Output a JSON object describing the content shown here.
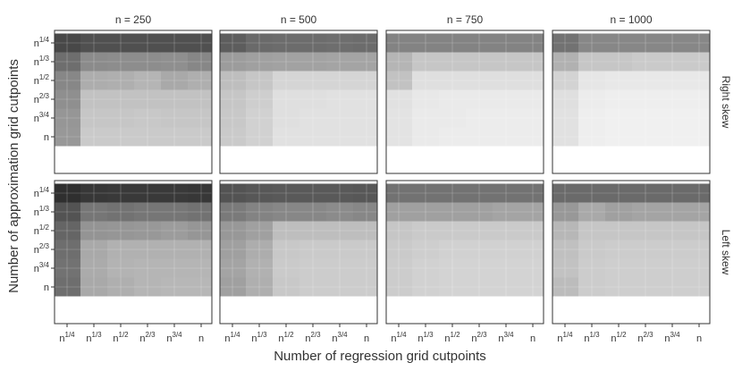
{
  "chart_data": {
    "type": "heatmap",
    "xlabel": "Number of regression grid cutpoints",
    "ylabel": "Number of approximation grid cutpoints",
    "x_ticks": [
      {
        "base": "n",
        "exp": "1/4"
      },
      {
        "base": "n",
        "exp": "1/3"
      },
      {
        "base": "n",
        "exp": "1/2"
      },
      {
        "base": "n",
        "exp": "2/3"
      },
      {
        "base": "n",
        "exp": "3/4"
      },
      {
        "base": "n",
        "exp": ""
      }
    ],
    "y_ticks": [
      {
        "base": "n",
        "exp": "1/4"
      },
      {
        "base": "n",
        "exp": "1/3"
      },
      {
        "base": "n",
        "exp": "1/2"
      },
      {
        "base": "n",
        "exp": "2/3"
      },
      {
        "base": "n",
        "exp": "3/4"
      },
      {
        "base": "n",
        "exp": ""
      }
    ],
    "col_facets": [
      "n = 250",
      "n = 500",
      "n = 750",
      "n = 1000"
    ],
    "row_facets": [
      "Right skew",
      "Left skew"
    ],
    "grid": true,
    "legend": "none",
    "colors": {
      "low": "#f0f0f0",
      "high": "#1e1e1e",
      "panel_border": "#333333",
      "strip_bg": "#ffffff",
      "grid": "#ffffff"
    },
    "value_range": [
      0,
      1
    ],
    "panels": [
      [
        [
          [
            0.8,
            0.76,
            0.76,
            0.76,
            0.76,
            0.76
          ],
          [
            0.62,
            0.48,
            0.47,
            0.47,
            0.46,
            0.5
          ],
          [
            0.5,
            0.32,
            0.31,
            0.28,
            0.34,
            0.31
          ],
          [
            0.46,
            0.22,
            0.22,
            0.22,
            0.22,
            0.22
          ],
          [
            0.43,
            0.2,
            0.2,
            0.19,
            0.2,
            0.2
          ],
          [
            0.42,
            0.18,
            0.18,
            0.18,
            0.18,
            0.18
          ]
        ],
        [
          [
            0.7,
            0.64,
            0.63,
            0.63,
            0.62,
            0.63
          ],
          [
            0.4,
            0.38,
            0.37,
            0.37,
            0.36,
            0.36
          ],
          [
            0.24,
            0.2,
            0.13,
            0.13,
            0.13,
            0.13
          ],
          [
            0.2,
            0.16,
            0.08,
            0.08,
            0.07,
            0.07
          ],
          [
            0.19,
            0.15,
            0.08,
            0.07,
            0.07,
            0.07
          ],
          [
            0.18,
            0.15,
            0.07,
            0.07,
            0.07,
            0.07
          ]
        ],
        [
          [
            0.52,
            0.52,
            0.52,
            0.52,
            0.52,
            0.52
          ],
          [
            0.28,
            0.2,
            0.2,
            0.2,
            0.2,
            0.2
          ],
          [
            0.22,
            0.08,
            0.08,
            0.08,
            0.08,
            0.08
          ],
          [
            0.07,
            0.04,
            0.03,
            0.03,
            0.03,
            0.03
          ],
          [
            0.06,
            0.03,
            0.03,
            0.02,
            0.02,
            0.02
          ],
          [
            0.06,
            0.03,
            0.02,
            0.02,
            0.02,
            0.02
          ]
        ],
        [
          [
            0.6,
            0.5,
            0.5,
            0.5,
            0.5,
            0.5
          ],
          [
            0.3,
            0.2,
            0.2,
            0.18,
            0.18,
            0.18
          ],
          [
            0.14,
            0.05,
            0.04,
            0.04,
            0.04,
            0.04
          ],
          [
            0.08,
            0.02,
            0.01,
            0.01,
            0.01,
            0.01
          ],
          [
            0.07,
            0.01,
            0.0,
            0.0,
            0.0,
            0.0
          ],
          [
            0.07,
            0.01,
            0.0,
            0.0,
            0.0,
            0.0
          ]
        ]
      ],
      [
        [
          [
            0.92,
            0.88,
            0.87,
            0.87,
            0.87,
            0.88
          ],
          [
            0.75,
            0.58,
            0.6,
            0.58,
            0.58,
            0.6
          ],
          [
            0.66,
            0.44,
            0.43,
            0.42,
            0.4,
            0.43
          ],
          [
            0.62,
            0.34,
            0.3,
            0.3,
            0.3,
            0.3
          ],
          [
            0.6,
            0.33,
            0.29,
            0.28,
            0.28,
            0.28
          ],
          [
            0.62,
            0.34,
            0.31,
            0.28,
            0.27,
            0.27
          ]
        ],
        [
          [
            0.75,
            0.73,
            0.72,
            0.72,
            0.72,
            0.73
          ],
          [
            0.56,
            0.52,
            0.5,
            0.5,
            0.48,
            0.5
          ],
          [
            0.42,
            0.38,
            0.24,
            0.24,
            0.24,
            0.24
          ],
          [
            0.38,
            0.32,
            0.19,
            0.18,
            0.18,
            0.18
          ],
          [
            0.36,
            0.3,
            0.18,
            0.17,
            0.17,
            0.17
          ],
          [
            0.38,
            0.31,
            0.19,
            0.17,
            0.17,
            0.17
          ]
        ],
        [
          [
            0.6,
            0.6,
            0.6,
            0.6,
            0.6,
            0.6
          ],
          [
            0.38,
            0.38,
            0.38,
            0.38,
            0.36,
            0.36
          ],
          [
            0.2,
            0.18,
            0.18,
            0.18,
            0.18,
            0.18
          ],
          [
            0.18,
            0.16,
            0.15,
            0.15,
            0.15,
            0.15
          ],
          [
            0.17,
            0.15,
            0.14,
            0.14,
            0.14,
            0.14
          ],
          [
            0.17,
            0.15,
            0.14,
            0.14,
            0.14,
            0.14
          ]
        ],
        [
          [
            0.64,
            0.64,
            0.64,
            0.64,
            0.64,
            0.64
          ],
          [
            0.42,
            0.34,
            0.38,
            0.36,
            0.36,
            0.36
          ],
          [
            0.27,
            0.2,
            0.2,
            0.2,
            0.2,
            0.2
          ],
          [
            0.23,
            0.18,
            0.17,
            0.17,
            0.17,
            0.17
          ],
          [
            0.22,
            0.17,
            0.16,
            0.16,
            0.16,
            0.16
          ],
          [
            0.25,
            0.17,
            0.16,
            0.16,
            0.16,
            0.16
          ]
        ]
      ]
    ]
  }
}
